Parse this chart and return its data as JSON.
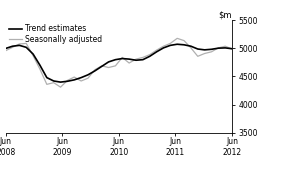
{
  "title": "",
  "ylim": [
    3500,
    5500
  ],
  "yticks": [
    3500,
    4000,
    4500,
    5000,
    5500
  ],
  "xtick_labels": [
    "Jun\n2008",
    "Jun\n2009",
    "Jun\n2010",
    "Jun\n2011",
    "Jun\n2012"
  ],
  "xtick_positions": [
    0,
    4,
    8,
    12,
    16
  ],
  "legend_entries": [
    "Trend estimates",
    "Seasonally adjusted"
  ],
  "trend_color": "#000000",
  "seasonal_color": "#b0b0b0",
  "trend_linewidth": 1.2,
  "seasonal_linewidth": 0.9,
  "background_color": "#ffffff",
  "trend_data": [
    5000,
    5040,
    5055,
    5020,
    4900,
    4700,
    4480,
    4420,
    4400,
    4415,
    4440,
    4480,
    4530,
    4600,
    4680,
    4760,
    4800,
    4820,
    4810,
    4790,
    4800,
    4860,
    4940,
    5010,
    5055,
    5075,
    5065,
    5040,
    4990,
    4975,
    4985,
    5005,
    5010,
    4995
  ],
  "seasonal_data": [
    4960,
    5020,
    5080,
    5090,
    4870,
    4630,
    4360,
    4390,
    4310,
    4430,
    4490,
    4420,
    4470,
    4620,
    4690,
    4660,
    4690,
    4840,
    4740,
    4810,
    4840,
    4890,
    4970,
    5040,
    5090,
    5180,
    5140,
    5010,
    4860,
    4910,
    4940,
    5010,
    5040,
    4990
  ],
  "n_points": 34,
  "figsize": [
    2.83,
    1.7
  ],
  "dpi": 100
}
